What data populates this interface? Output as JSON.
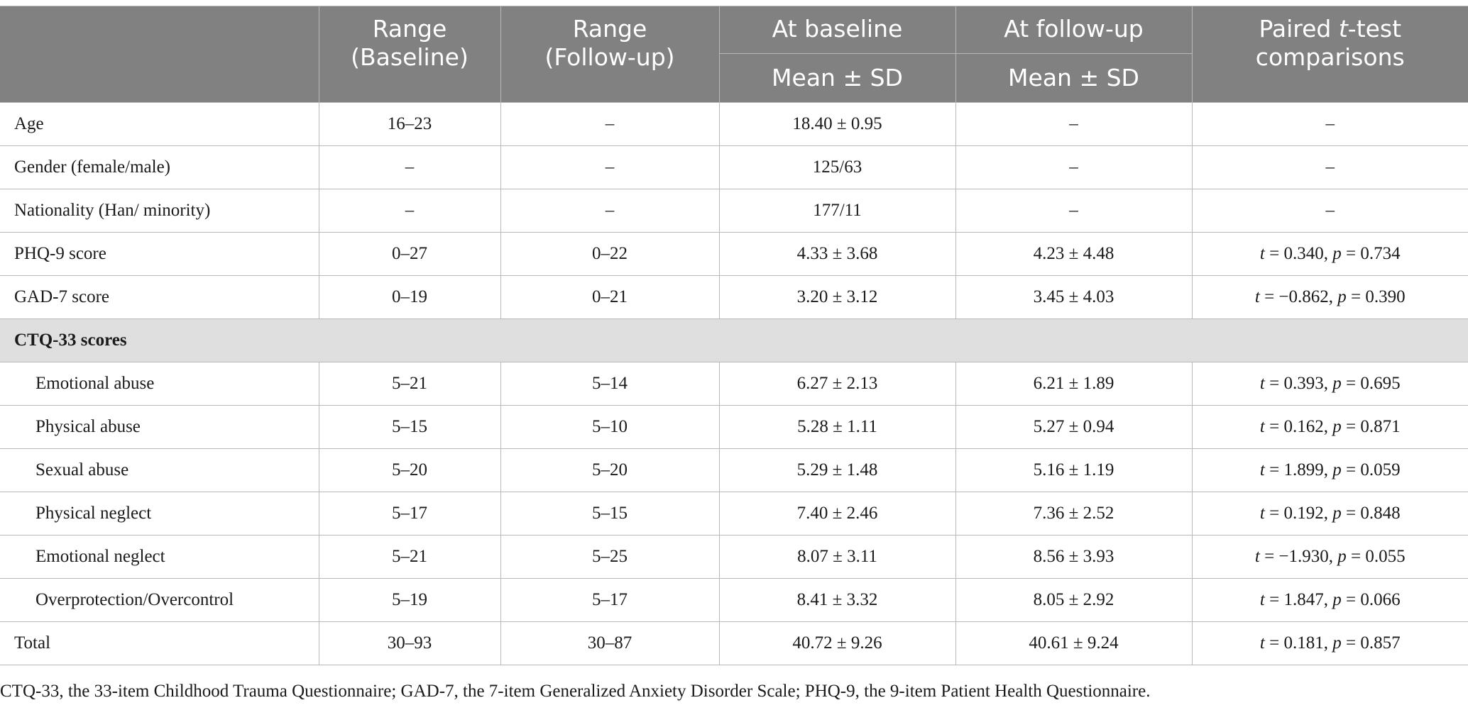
{
  "header": {
    "range_baseline": [
      "Range",
      "(Baseline)"
    ],
    "range_followup": [
      "Range",
      "(Follow-up)"
    ],
    "at_baseline": "At baseline",
    "at_followup": "At follow-up",
    "mean_sd_baseline": "Mean ± SD",
    "mean_sd_followup": "Mean ± SD",
    "paired_pre": "Paired ",
    "paired_t": "t",
    "paired_post": "-test",
    "comparisons": "comparisons"
  },
  "rows": [
    {
      "label": "Age",
      "indent": false,
      "range_baseline": "16–23",
      "range_followup": "–",
      "baseline": "18.40 ± 0.95",
      "followup": "–",
      "test": null
    },
    {
      "label": "Gender (female/male)",
      "indent": false,
      "range_baseline": "–",
      "range_followup": "–",
      "baseline": "125/63",
      "followup": "–",
      "test": null
    },
    {
      "label": "Nationality (Han/ minority)",
      "indent": false,
      "range_baseline": "–",
      "range_followup": "–",
      "baseline": "177/11",
      "followup": "–",
      "test": null
    },
    {
      "label": "PHQ-9 score",
      "indent": false,
      "range_baseline": "0–27",
      "range_followup": "0–22",
      "baseline": "4.33 ± 3.68",
      "followup": "4.23 ± 4.48",
      "test": {
        "t": "0.340",
        "p": "0.734"
      }
    },
    {
      "label": "GAD-7 score",
      "indent": false,
      "range_baseline": "0–19",
      "range_followup": "0–21",
      "baseline": "3.20 ± 3.12",
      "followup": "3.45 ± 4.03",
      "test": {
        "t": "−0.862",
        "p": "0.390"
      }
    },
    {
      "section": "CTQ-33 scores"
    },
    {
      "label": "Emotional abuse",
      "indent": true,
      "range_baseline": "5–21",
      "range_followup": "5–14",
      "baseline": "6.27 ± 2.13",
      "followup": "6.21 ± 1.89",
      "test": {
        "t": "0.393",
        "p": "0.695"
      }
    },
    {
      "label": "Physical abuse",
      "indent": true,
      "range_baseline": "5–15",
      "range_followup": "5–10",
      "baseline": "5.28 ± 1.11",
      "followup": "5.27 ± 0.94",
      "test": {
        "t": "0.162",
        "p": "0.871"
      }
    },
    {
      "label": "Sexual abuse",
      "indent": true,
      "range_baseline": "5–20",
      "range_followup": "5–20",
      "baseline": "5.29 ± 1.48",
      "followup": "5.16 ± 1.19",
      "test": {
        "t": "1.899",
        "p": "0.059"
      }
    },
    {
      "label": "Physical neglect",
      "indent": true,
      "range_baseline": "5–17",
      "range_followup": "5–15",
      "baseline": "7.40 ± 2.46",
      "followup": "7.36 ± 2.52",
      "test": {
        "t": "0.192",
        "p": "0.848"
      }
    },
    {
      "label": "Emotional neglect",
      "indent": true,
      "range_baseline": "5–21",
      "range_followup": "5–25",
      "baseline": "8.07 ± 3.11",
      "followup": "8.56 ± 3.93",
      "test": {
        "t": "−1.930",
        "p": "0.055"
      }
    },
    {
      "label": "Overprotection/Overcontrol",
      "indent": true,
      "range_baseline": "5–19",
      "range_followup": "5–17",
      "baseline": "8.41 ± 3.32",
      "followup": "8.05 ± 2.92",
      "test": {
        "t": "1.847",
        "p": "0.066"
      }
    },
    {
      "label": "Total",
      "indent": false,
      "range_baseline": "30–93",
      "range_followup": "30–87",
      "baseline": "40.72 ± 9.26",
      "followup": "40.61 ± 9.24",
      "test": {
        "t": "0.181",
        "p": "0.857"
      }
    }
  ],
  "empty_test": "–",
  "footnote": "CTQ-33, the 33-item Childhood Trauma Questionnaire; GAD-7, the 7-item Generalized Anxiety Disorder Scale; PHQ-9, the 9-item Patient Health Questionnaire."
}
